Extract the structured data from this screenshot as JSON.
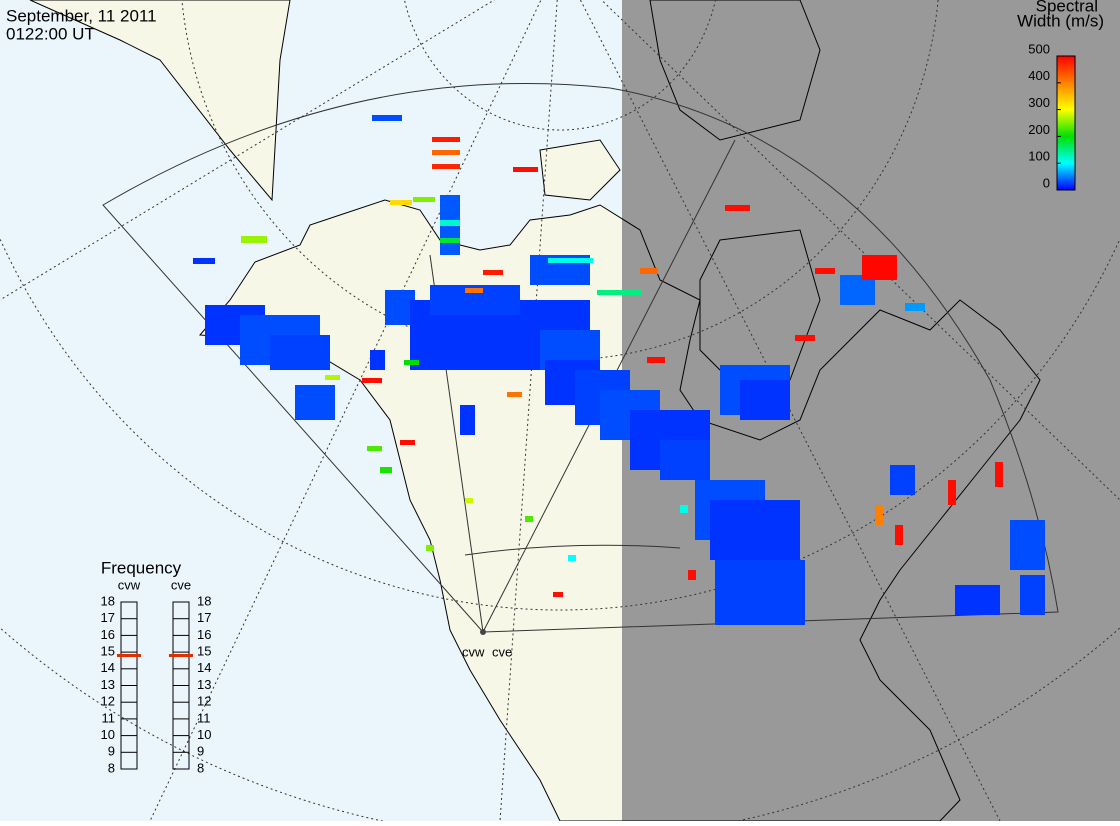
{
  "header": {
    "date": "September, 11 2011",
    "time": "0122:00 UT"
  },
  "colorbar": {
    "title_line1": "Spectral",
    "title_line2": "Width (m/s)",
    "ticks": [
      0,
      100,
      200,
      300,
      400,
      500
    ],
    "range": [
      0,
      500
    ]
  },
  "frequency": {
    "title": "Frequency",
    "ticks": [
      8,
      9,
      10,
      11,
      12,
      13,
      14,
      15,
      16,
      17,
      18
    ],
    "range": [
      8,
      18
    ],
    "radars": [
      {
        "name": "cvw",
        "value": 14.8
      },
      {
        "name": "cve",
        "value": 14.8
      }
    ]
  },
  "radar_sites": [
    {
      "label": "cvw"
    },
    {
      "label": "cve"
    }
  ],
  "cells": {
    "widths": [
      20,
      30,
      25,
      30,
      20,
      25,
      30,
      20,
      25,
      30,
      20,
      25,
      30,
      20,
      25,
      30,
      20,
      40,
      25,
      30,
      20,
      25,
      30,
      20,
      30,
      35,
      20,
      30,
      480,
      420,
      470,
      490,
      330,
      250,
      260,
      20,
      120,
      180,
      110,
      480,
      410,
      420,
      150,
      490,
      490,
      495,
      60,
      490,
      490,
      490,
      200,
      270,
      410,
      230,
      490,
      210,
      280,
      230,
      250,
      400,
      490,
      490,
      490,
      490,
      490,
      100,
      110
    ]
  }
}
